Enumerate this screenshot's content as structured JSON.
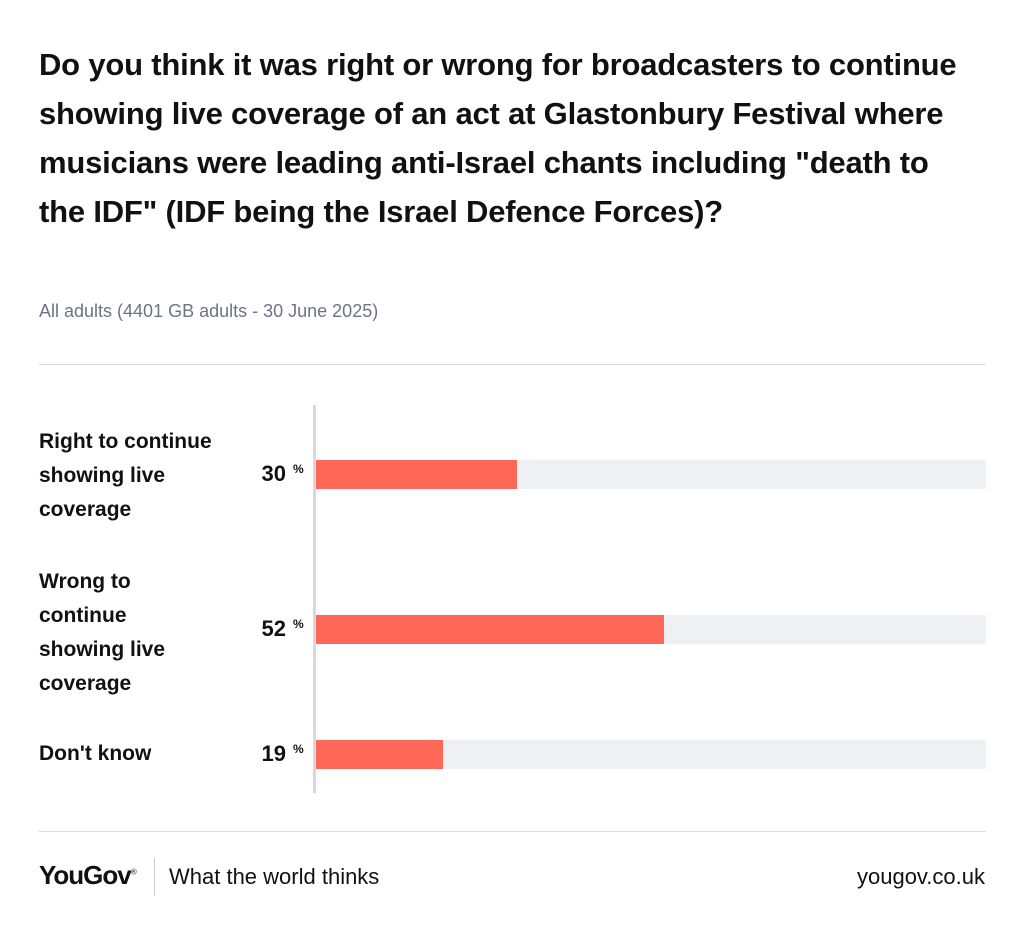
{
  "chart_data": {
    "type": "bar",
    "orientation": "horizontal",
    "title": "Do you think it was right or wrong for broadcasters to continue showing live coverage of an act at Glastonbury Festival where musicians were leading anti-Israel chants including \"death to the IDF\" (IDF being the Israel Defence Forces)?",
    "subtitle": "All adults (4401 GB adults - 30 June 2025)",
    "categories": [
      [
        "Right to continue",
        "showing live",
        "coverage"
      ],
      [
        "Wrong to",
        "continue",
        "showing live",
        "coverage"
      ],
      [
        "Don't know"
      ]
    ],
    "values": [
      30,
      52,
      19
    ],
    "unit": "%",
    "xlim": [
      0,
      100
    ],
    "grid": false,
    "bar_color": "#ff6758",
    "track_color": "#eff0f3"
  },
  "footer": {
    "brand": "YouGov",
    "tagline": "What the world thinks",
    "url": "yougov.co.uk"
  }
}
